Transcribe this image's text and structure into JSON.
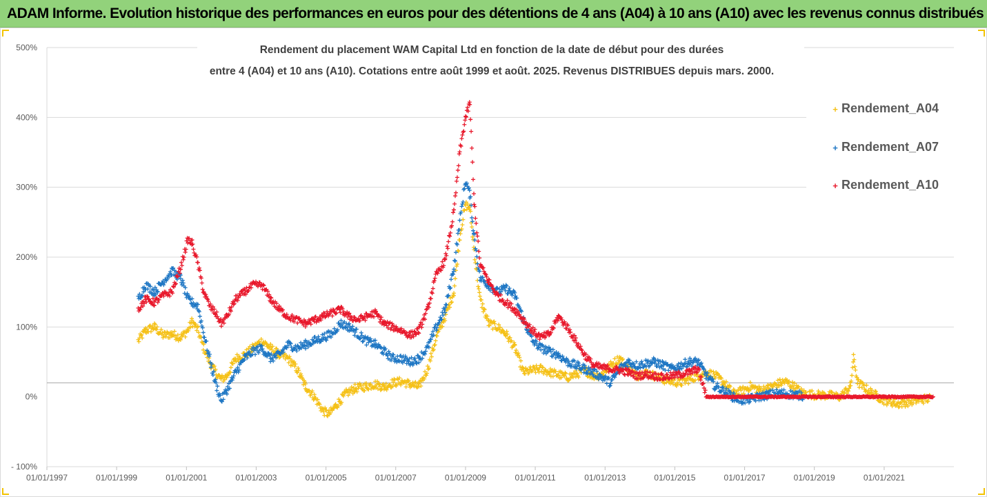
{
  "banner": {
    "title": "ADAM Informe. Evolution historique des performances en euros pour des détentions de 4 ans (A04) à 10 ans (A10) avec les revenus connus distribués"
  },
  "colors": {
    "banner_bg": "#92d27b",
    "A04": "#f5c118",
    "A07": "#1f77c4",
    "A10": "#e8192c",
    "grid": "#d9d9d9",
    "reference_line": "#a6a6a6"
  },
  "chart_data": {
    "type": "scatter",
    "title_lines": [
      "Rendement du placement WAM Capital Ltd en fonction de la date de début pour des durées",
      "entre 4 (A04) et 10 ans (A10).  Cotations entre août 1999 et août. 2025. Revenus DISTRIBUES depuis mars. 2000."
    ],
    "xlabel": "",
    "ylabel": "",
    "x_ticks": [
      "01/01/1997",
      "01/01/1999",
      "01/01/2001",
      "01/01/2003",
      "01/01/2005",
      "01/01/2007",
      "01/01/2009",
      "01/01/2011",
      "01/01/2013",
      "01/01/2015",
      "01/01/2017",
      "01/01/2019",
      "01/01/2021"
    ],
    "xlim": [
      "1997-01-01",
      "2023-01-01"
    ],
    "y_ticks": [
      "- 100%",
      "0%",
      "100%",
      "200%",
      "300%",
      "400%",
      "500%"
    ],
    "y_tick_values": [
      -100,
      0,
      100,
      200,
      300,
      400,
      500
    ],
    "ylim": [
      -100,
      500
    ],
    "reference_line_y": 20,
    "grid": "horizontal",
    "legend_position": "right",
    "series": [
      {
        "name": "Rendement_A04",
        "color": "#f5c118",
        "marker": "+",
        "points": [
          [
            "1999-08-15",
            80
          ],
          [
            "1999-11-01",
            95
          ],
          [
            "2000-02-01",
            100
          ],
          [
            "2000-05-01",
            88
          ],
          [
            "2000-08-01",
            90
          ],
          [
            "2000-11-01",
            85
          ],
          [
            "2001-01-15",
            95
          ],
          [
            "2001-03-01",
            108
          ],
          [
            "2001-05-01",
            95
          ],
          [
            "2001-07-01",
            70
          ],
          [
            "2001-09-01",
            50
          ],
          [
            "2001-11-01",
            35
          ],
          [
            "2002-01-01",
            25
          ],
          [
            "2002-03-01",
            30
          ],
          [
            "2002-06-01",
            55
          ],
          [
            "2002-09-01",
            60
          ],
          [
            "2002-12-01",
            70
          ],
          [
            "2003-03-01",
            80
          ],
          [
            "2003-06-01",
            70
          ],
          [
            "2003-09-01",
            60
          ],
          [
            "2003-12-01",
            55
          ],
          [
            "2004-03-01",
            40
          ],
          [
            "2004-06-01",
            15
          ],
          [
            "2004-09-01",
            0
          ],
          [
            "2004-12-01",
            -20
          ],
          [
            "2005-02-01",
            -25
          ],
          [
            "2005-05-01",
            -10
          ],
          [
            "2005-08-01",
            5
          ],
          [
            "2005-11-01",
            12
          ],
          [
            "2006-03-01",
            15
          ],
          [
            "2006-06-01",
            18
          ],
          [
            "2006-09-01",
            14
          ],
          [
            "2006-12-01",
            20
          ],
          [
            "2007-03-01",
            22
          ],
          [
            "2007-06-01",
            18
          ],
          [
            "2007-09-01",
            14
          ],
          [
            "2007-12-01",
            40
          ],
          [
            "2008-03-01",
            85
          ],
          [
            "2008-06-01",
            115
          ],
          [
            "2008-09-01",
            150
          ],
          [
            "2008-11-01",
            230
          ],
          [
            "2009-01-01",
            275
          ],
          [
            "2009-02-15",
            270
          ],
          [
            "2009-04-01",
            210
          ],
          [
            "2009-06-01",
            140
          ],
          [
            "2009-09-01",
            105
          ],
          [
            "2009-12-01",
            100
          ],
          [
            "2010-03-01",
            90
          ],
          [
            "2010-06-01",
            70
          ],
          [
            "2010-09-01",
            35
          ],
          [
            "2010-12-01",
            38
          ],
          [
            "2011-03-01",
            40
          ],
          [
            "2011-06-01",
            35
          ],
          [
            "2011-09-01",
            32
          ],
          [
            "2011-12-01",
            28
          ],
          [
            "2012-03-01",
            32
          ],
          [
            "2012-06-01",
            38
          ],
          [
            "2012-09-01",
            30
          ],
          [
            "2012-12-01",
            32
          ],
          [
            "2013-03-01",
            45
          ],
          [
            "2013-06-01",
            55
          ],
          [
            "2013-09-01",
            40
          ],
          [
            "2013-12-01",
            30
          ],
          [
            "2014-03-01",
            35
          ],
          [
            "2014-06-01",
            30
          ],
          [
            "2014-09-01",
            25
          ],
          [
            "2014-12-01",
            22
          ],
          [
            "2015-03-01",
            20
          ],
          [
            "2015-06-01",
            25
          ],
          [
            "2015-09-01",
            30
          ],
          [
            "2015-12-01",
            35
          ],
          [
            "2016-03-01",
            30
          ],
          [
            "2016-06-01",
            20
          ],
          [
            "2016-09-01",
            5
          ],
          [
            "2016-12-01",
            8
          ],
          [
            "2017-03-01",
            15
          ],
          [
            "2017-06-01",
            10
          ],
          [
            "2017-09-01",
            12
          ],
          [
            "2017-12-01",
            18
          ],
          [
            "2018-03-01",
            22
          ],
          [
            "2018-06-01",
            15
          ],
          [
            "2018-09-01",
            5
          ],
          [
            "2019-01-01",
            3
          ],
          [
            "2019-06-01",
            2
          ],
          [
            "2019-10-01",
            0
          ],
          [
            "2020-01-15",
            15
          ],
          [
            "2020-02-15",
            55
          ],
          [
            "2020-04-01",
            20
          ],
          [
            "2020-09-01",
            5
          ],
          [
            "2021-01-01",
            -5
          ],
          [
            "2021-06-01",
            -10
          ],
          [
            "2021-12-01",
            -5
          ],
          [
            "2022-05-01",
            -2
          ]
        ]
      },
      {
        "name": "Rendement_A07",
        "color": "#1f77c4",
        "marker": "+",
        "points": [
          [
            "1999-08-15",
            140
          ],
          [
            "1999-11-01",
            160
          ],
          [
            "2000-02-01",
            150
          ],
          [
            "2000-05-01",
            165
          ],
          [
            "2000-08-01",
            180
          ],
          [
            "2000-11-01",
            170
          ],
          [
            "2001-01-15",
            140
          ],
          [
            "2001-03-01",
            135
          ],
          [
            "2001-05-01",
            130
          ],
          [
            "2001-07-01",
            90
          ],
          [
            "2001-09-01",
            55
          ],
          [
            "2001-11-01",
            20
          ],
          [
            "2002-01-01",
            -5
          ],
          [
            "2002-03-01",
            10
          ],
          [
            "2002-06-01",
            35
          ],
          [
            "2002-09-01",
            55
          ],
          [
            "2002-12-01",
            65
          ],
          [
            "2003-03-01",
            70
          ],
          [
            "2003-06-01",
            55
          ],
          [
            "2003-09-01",
            60
          ],
          [
            "2003-12-01",
            75
          ],
          [
            "2004-03-01",
            70
          ],
          [
            "2004-06-01",
            75
          ],
          [
            "2004-09-01",
            80
          ],
          [
            "2004-12-01",
            85
          ],
          [
            "2005-03-01",
            90
          ],
          [
            "2005-06-01",
            105
          ],
          [
            "2005-09-01",
            100
          ],
          [
            "2005-12-01",
            90
          ],
          [
            "2006-03-01",
            80
          ],
          [
            "2006-06-01",
            75
          ],
          [
            "2006-09-01",
            65
          ],
          [
            "2006-12-01",
            55
          ],
          [
            "2007-03-01",
            55
          ],
          [
            "2007-06-01",
            50
          ],
          [
            "2007-09-01",
            55
          ],
          [
            "2007-12-01",
            70
          ],
          [
            "2008-03-01",
            100
          ],
          [
            "2008-06-01",
            125
          ],
          [
            "2008-09-01",
            185
          ],
          [
            "2008-11-01",
            250
          ],
          [
            "2009-01-01",
            310
          ],
          [
            "2009-02-15",
            290
          ],
          [
            "2009-04-01",
            230
          ],
          [
            "2009-06-01",
            170
          ],
          [
            "2009-09-01",
            160
          ],
          [
            "2009-12-01",
            150
          ],
          [
            "2010-03-01",
            155
          ],
          [
            "2010-06-01",
            145
          ],
          [
            "2010-09-01",
            110
          ],
          [
            "2010-12-01",
            80
          ],
          [
            "2011-03-01",
            70
          ],
          [
            "2011-06-01",
            65
          ],
          [
            "2011-09-01",
            60
          ],
          [
            "2011-12-01",
            50
          ],
          [
            "2012-03-01",
            45
          ],
          [
            "2012-06-01",
            40
          ],
          [
            "2012-09-01",
            35
          ],
          [
            "2012-12-01",
            28
          ],
          [
            "2013-03-01",
            20
          ],
          [
            "2013-06-01",
            40
          ],
          [
            "2013-09-01",
            50
          ],
          [
            "2013-12-01",
            45
          ],
          [
            "2014-03-01",
            48
          ],
          [
            "2014-06-01",
            50
          ],
          [
            "2014-09-01",
            45
          ],
          [
            "2014-12-01",
            40
          ],
          [
            "2015-03-01",
            45
          ],
          [
            "2015-06-01",
            50
          ],
          [
            "2015-09-01",
            50
          ],
          [
            "2015-12-01",
            30
          ],
          [
            "2016-03-01",
            15
          ],
          [
            "2016-06-01",
            8
          ],
          [
            "2016-09-01",
            0
          ],
          [
            "2016-12-01",
            -5
          ],
          [
            "2017-03-01",
            -3
          ],
          [
            "2017-06-01",
            0
          ],
          [
            "2017-09-01",
            3
          ],
          [
            "2017-12-01",
            5
          ],
          [
            "2018-03-01",
            5
          ],
          [
            "2018-06-01",
            3
          ],
          [
            "2018-09-01",
            2
          ]
        ]
      },
      {
        "name": "Rendement_A10",
        "color": "#e8192c",
        "marker": "+",
        "points": [
          [
            "1999-08-15",
            125
          ],
          [
            "1999-11-01",
            140
          ],
          [
            "2000-02-01",
            135
          ],
          [
            "2000-05-01",
            145
          ],
          [
            "2000-08-01",
            150
          ],
          [
            "2000-11-01",
            185
          ],
          [
            "2001-01-15",
            225
          ],
          [
            "2001-03-01",
            220
          ],
          [
            "2001-05-01",
            190
          ],
          [
            "2001-07-01",
            150
          ],
          [
            "2001-09-01",
            130
          ],
          [
            "2001-11-01",
            120
          ],
          [
            "2002-01-01",
            105
          ],
          [
            "2002-03-01",
            115
          ],
          [
            "2002-06-01",
            140
          ],
          [
            "2002-09-01",
            150
          ],
          [
            "2002-12-01",
            160
          ],
          [
            "2003-03-01",
            160
          ],
          [
            "2003-06-01",
            140
          ],
          [
            "2003-09-01",
            125
          ],
          [
            "2003-12-01",
            115
          ],
          [
            "2004-03-01",
            110
          ],
          [
            "2004-06-01",
            105
          ],
          [
            "2004-09-01",
            110
          ],
          [
            "2004-12-01",
            115
          ],
          [
            "2005-03-01",
            120
          ],
          [
            "2005-06-01",
            125
          ],
          [
            "2005-09-01",
            115
          ],
          [
            "2005-12-01",
            110
          ],
          [
            "2006-03-01",
            115
          ],
          [
            "2006-06-01",
            120
          ],
          [
            "2006-09-01",
            105
          ],
          [
            "2006-12-01",
            100
          ],
          [
            "2007-03-01",
            95
          ],
          [
            "2007-06-01",
            88
          ],
          [
            "2007-09-01",
            95
          ],
          [
            "2007-12-01",
            125
          ],
          [
            "2008-03-01",
            175
          ],
          [
            "2008-06-01",
            195
          ],
          [
            "2008-09-01",
            265
          ],
          [
            "2008-11-01",
            350
          ],
          [
            "2009-01-01",
            400
          ],
          [
            "2009-02-15",
            420
          ],
          [
            "2009-04-01",
            280
          ],
          [
            "2009-06-01",
            190
          ],
          [
            "2009-09-01",
            165
          ],
          [
            "2009-12-01",
            145
          ],
          [
            "2010-03-01",
            135
          ],
          [
            "2010-06-01",
            125
          ],
          [
            "2010-09-01",
            110
          ],
          [
            "2010-12-01",
            95
          ],
          [
            "2011-03-01",
            85
          ],
          [
            "2011-06-01",
            90
          ],
          [
            "2011-09-01",
            115
          ],
          [
            "2011-12-01",
            100
          ],
          [
            "2012-03-01",
            80
          ],
          [
            "2012-06-01",
            60
          ],
          [
            "2012-09-01",
            45
          ],
          [
            "2012-12-01",
            42
          ],
          [
            "2013-03-01",
            40
          ],
          [
            "2013-06-01",
            38
          ],
          [
            "2013-09-01",
            35
          ],
          [
            "2013-12-01",
            30
          ],
          [
            "2014-03-01",
            32
          ],
          [
            "2014-06-01",
            30
          ],
          [
            "2014-09-01",
            28
          ],
          [
            "2014-12-01",
            30
          ],
          [
            "2015-03-01",
            32
          ],
          [
            "2015-06-01",
            35
          ],
          [
            "2015-09-01",
            40
          ],
          [
            "2015-12-01",
            0
          ],
          [
            "2016-06-01",
            0
          ],
          [
            "2017-01-01",
            0
          ],
          [
            "2017-06-01",
            0
          ],
          [
            "2018-01-01",
            0
          ],
          [
            "2018-06-01",
            0
          ],
          [
            "2019-01-01",
            0
          ],
          [
            "2019-06-01",
            0
          ],
          [
            "2020-01-01",
            0
          ],
          [
            "2020-06-01",
            0
          ],
          [
            "2021-01-01",
            0
          ],
          [
            "2021-06-01",
            0
          ],
          [
            "2022-01-01",
            0
          ],
          [
            "2022-06-01",
            0
          ]
        ]
      }
    ]
  }
}
